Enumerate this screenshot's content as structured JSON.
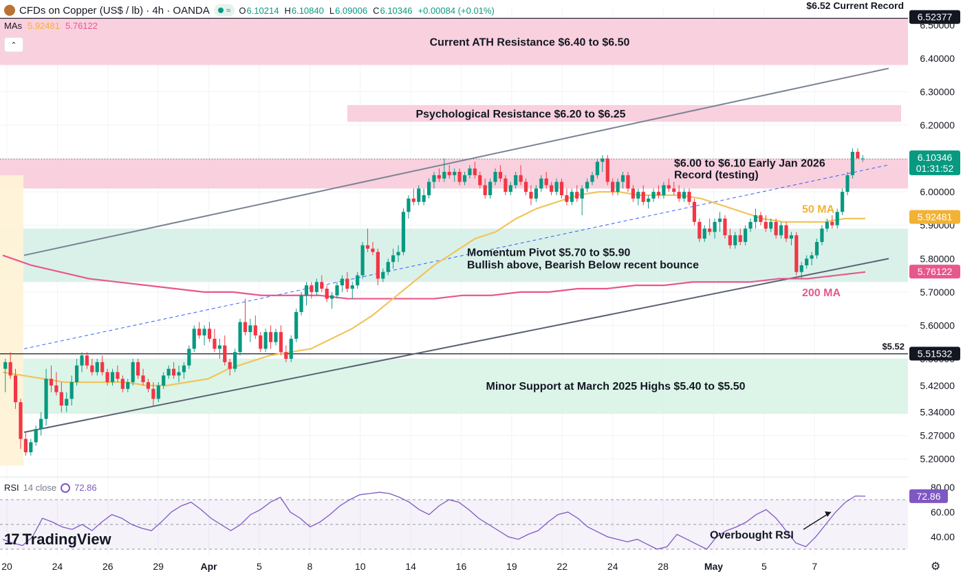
{
  "header": {
    "symbol_title": "CFDs on Copper (US$ / lb) · 4h · OANDA",
    "status_icon": "market-open-icon",
    "ohlc": {
      "open_label": "O",
      "open": "6.10214",
      "high_label": "H",
      "high": "6.10840",
      "low_label": "L",
      "low": "6.09006",
      "close_label": "C",
      "close": "6.10346",
      "change": "+0.00084 (+0.01%)"
    },
    "mas_label": "MAs",
    "ma50_value": "5.92481",
    "ma200_value": "5.76122",
    "collapse_icon": "chevron-up-icon"
  },
  "rsi_header": {
    "label": "RSI",
    "params": "14 close",
    "value": "72.86",
    "icon": "refresh-icon"
  },
  "branding": {
    "name": "TradingView",
    "logo": "tradingview-logo"
  },
  "settings_icon": "gear-icon",
  "colors": {
    "up": "#089981",
    "down": "#f23645",
    "ma50": "#f2c45a",
    "ma200": "#e8578c",
    "resistance_zone": "#f8c8d8",
    "support_zone": "#cdeedd",
    "channel": "#7a8394",
    "trend_dashed": "#2962ff",
    "rsi_line": "#7e57c2"
  },
  "chart_data": {
    "type": "candlestick",
    "y_range": [
      5.15,
      6.55
    ],
    "y_ticks": [
      "6.50000",
      "6.40000",
      "6.30000",
      "6.20000",
      "6.00000",
      "5.90000",
      "5.80000",
      "5.70000",
      "5.60000",
      "5.50000",
      "5.42000",
      "5.34000",
      "5.27000",
      "5.20000"
    ],
    "x_ticks": [
      "20",
      "24",
      "26",
      "29",
      "Apr",
      "5",
      "8",
      "10",
      "14",
      "16",
      "19",
      "22",
      "24",
      "28",
      "May",
      "5",
      "7"
    ],
    "price_badges": [
      {
        "value": "6.52377",
        "color": "#131722"
      },
      {
        "value": "6.10346",
        "sub": "01:31:52",
        "color": "#089981"
      },
      {
        "value": "5.92481",
        "color": "#f2b233"
      },
      {
        "value": "5.76122",
        "color": "#e8578c"
      },
      {
        "value": "5.51532",
        "color": "#131722"
      }
    ],
    "zones": [
      {
        "label": "Current ATH Resistance $6.40 to $6.50",
        "from": 6.38,
        "to": 6.52,
        "kind": "resistance"
      },
      {
        "label": "Psychological Resistance $6.20 to $6.25",
        "from": 6.21,
        "to": 6.26,
        "kind": "resistance"
      },
      {
        "label": "$6.00 to $6.10 Early Jan 2026 Record (testing)",
        "from": 6.01,
        "to": 6.1,
        "kind": "resistance"
      },
      {
        "label": "Momentum Pivot $5.70 to $5.90",
        "sublabel": "Bullish above, Bearish Below recent bounce",
        "from": 5.73,
        "to": 5.89,
        "kind": "pivot"
      },
      {
        "label": "Minor Support at March 2025 Highs $5.40 to $5.50",
        "from": 5.335,
        "to": 5.5,
        "kind": "support"
      }
    ],
    "levels": [
      {
        "label": "$6.52 Current Record",
        "value": 6.52
      },
      {
        "label": "$5.52",
        "value": 5.515
      }
    ],
    "ma_labels": {
      "ma50": "50 MA",
      "ma200": "200 MA"
    },
    "candles": [
      [
        5.47,
        5.5,
        5.4,
        5.49
      ],
      [
        5.49,
        5.52,
        5.44,
        5.45
      ],
      [
        5.45,
        5.47,
        5.35,
        5.37
      ],
      [
        5.37,
        5.38,
        5.23,
        5.26
      ],
      [
        5.26,
        5.28,
        5.21,
        5.22
      ],
      [
        5.22,
        5.26,
        5.21,
        5.25
      ],
      [
        5.25,
        5.3,
        5.24,
        5.29
      ],
      [
        5.29,
        5.34,
        5.27,
        5.32
      ],
      [
        5.32,
        5.47,
        5.3,
        5.44
      ],
      [
        5.44,
        5.48,
        5.4,
        5.42
      ],
      [
        5.42,
        5.46,
        5.39,
        5.4
      ],
      [
        5.4,
        5.43,
        5.34,
        5.36
      ],
      [
        5.36,
        5.4,
        5.34,
        5.38
      ],
      [
        5.38,
        5.45,
        5.36,
        5.43
      ],
      [
        5.43,
        5.5,
        5.42,
        5.48
      ],
      [
        5.48,
        5.52,
        5.46,
        5.51
      ],
      [
        5.51,
        5.52,
        5.47,
        5.48
      ],
      [
        5.48,
        5.5,
        5.45,
        5.46
      ],
      [
        5.46,
        5.5,
        5.45,
        5.49
      ],
      [
        5.49,
        5.51,
        5.45,
        5.46
      ],
      [
        5.46,
        5.47,
        5.42,
        5.43
      ],
      [
        5.43,
        5.47,
        5.42,
        5.46
      ],
      [
        5.46,
        5.48,
        5.43,
        5.44
      ],
      [
        5.44,
        5.45,
        5.4,
        5.41
      ],
      [
        5.41,
        5.44,
        5.4,
        5.43
      ],
      [
        5.43,
        5.5,
        5.42,
        5.49
      ],
      [
        5.49,
        5.5,
        5.44,
        5.45
      ],
      [
        5.45,
        5.47,
        5.42,
        5.43
      ],
      [
        5.43,
        5.44,
        5.4,
        5.41
      ],
      [
        5.41,
        5.43,
        5.36,
        5.38
      ],
      [
        5.38,
        5.43,
        5.37,
        5.42
      ],
      [
        5.42,
        5.46,
        5.41,
        5.45
      ],
      [
        5.45,
        5.48,
        5.44,
        5.47
      ],
      [
        5.47,
        5.49,
        5.44,
        5.45
      ],
      [
        5.45,
        5.48,
        5.43,
        5.46
      ],
      [
        5.46,
        5.49,
        5.44,
        5.48
      ],
      [
        5.48,
        5.54,
        5.47,
        5.53
      ],
      [
        5.53,
        5.6,
        5.52,
        5.59
      ],
      [
        5.59,
        5.61,
        5.56,
        5.57
      ],
      [
        5.57,
        5.6,
        5.54,
        5.59
      ],
      [
        5.59,
        5.61,
        5.55,
        5.56
      ],
      [
        5.56,
        5.59,
        5.52,
        5.53
      ],
      [
        5.53,
        5.56,
        5.5,
        5.54
      ],
      [
        5.54,
        5.57,
        5.48,
        5.49
      ],
      [
        5.49,
        5.5,
        5.45,
        5.47
      ],
      [
        5.47,
        5.53,
        5.46,
        5.52
      ],
      [
        5.52,
        5.62,
        5.51,
        5.61
      ],
      [
        5.61,
        5.68,
        5.57,
        5.58
      ],
      [
        5.58,
        5.62,
        5.55,
        5.6
      ],
      [
        5.6,
        5.63,
        5.56,
        5.57
      ],
      [
        5.57,
        5.58,
        5.52,
        5.53
      ],
      [
        5.53,
        5.59,
        5.52,
        5.58
      ],
      [
        5.58,
        5.6,
        5.53,
        5.55
      ],
      [
        5.55,
        5.59,
        5.54,
        5.58
      ],
      [
        5.58,
        5.6,
        5.51,
        5.52
      ],
      [
        5.52,
        5.54,
        5.49,
        5.5
      ],
      [
        5.5,
        5.57,
        5.49,
        5.56
      ],
      [
        5.56,
        5.65,
        5.55,
        5.64
      ],
      [
        5.64,
        5.7,
        5.63,
        5.69
      ],
      [
        5.69,
        5.73,
        5.66,
        5.72
      ],
      [
        5.72,
        5.73,
        5.68,
        5.7
      ],
      [
        5.7,
        5.74,
        5.69,
        5.73
      ],
      [
        5.73,
        5.75,
        5.7,
        5.71
      ],
      [
        5.71,
        5.72,
        5.67,
        5.68
      ],
      [
        5.68,
        5.7,
        5.65,
        5.69
      ],
      [
        5.69,
        5.73,
        5.68,
        5.72
      ],
      [
        5.72,
        5.75,
        5.7,
        5.74
      ],
      [
        5.74,
        5.76,
        5.7,
        5.71
      ],
      [
        5.71,
        5.73,
        5.68,
        5.72
      ],
      [
        5.72,
        5.76,
        5.71,
        5.75
      ],
      [
        5.75,
        5.85,
        5.74,
        5.84
      ],
      [
        5.84,
        5.89,
        5.82,
        5.83
      ],
      [
        5.83,
        5.85,
        5.81,
        5.82
      ],
      [
        5.82,
        5.83,
        5.72,
        5.74
      ],
      [
        5.74,
        5.77,
        5.73,
        5.76
      ],
      [
        5.76,
        5.8,
        5.75,
        5.79
      ],
      [
        5.79,
        5.83,
        5.77,
        5.81
      ],
      [
        5.81,
        5.84,
        5.79,
        5.82
      ],
      [
        5.82,
        5.95,
        5.81,
        5.94
      ],
      [
        5.94,
        5.99,
        5.92,
        5.98
      ],
      [
        5.98,
        6.01,
        5.96,
        5.97
      ],
      [
        5.97,
        6.02,
        5.96,
        6.01
      ],
      [
        5.97,
        6.01,
        5.96,
        5.99
      ],
      [
        5.99,
        6.04,
        5.98,
        6.03
      ],
      [
        6.03,
        6.06,
        6.01,
        6.05
      ],
      [
        6.05,
        6.07,
        6.03,
        6.04
      ],
      [
        6.04,
        6.1,
        6.03,
        6.06
      ],
      [
        6.06,
        6.08,
        6.04,
        6.05
      ],
      [
        6.05,
        6.07,
        6.03,
        6.06
      ],
      [
        6.06,
        6.07,
        6.02,
        6.03
      ],
      [
        6.03,
        6.06,
        6.02,
        6.05
      ],
      [
        6.05,
        6.08,
        6.04,
        6.07
      ],
      [
        6.07,
        6.09,
        6.04,
        6.05
      ],
      [
        6.05,
        6.06,
        6.01,
        6.02
      ],
      [
        6.02,
        6.04,
        5.98,
        5.99
      ],
      [
        5.99,
        6.04,
        5.98,
        6.03
      ],
      [
        6.03,
        6.07,
        6.02,
        6.06
      ],
      [
        6.06,
        6.08,
        6.03,
        6.04
      ],
      [
        6.04,
        6.05,
        5.99,
        6.0
      ],
      [
        6.0,
        6.03,
        5.99,
        6.02
      ],
      [
        6.02,
        6.06,
        6.01,
        6.05
      ],
      [
        6.05,
        6.08,
        6.02,
        6.03
      ],
      [
        6.03,
        6.04,
        5.99,
        6.0
      ],
      [
        6.0,
        6.02,
        5.96,
        5.98
      ],
      [
        5.98,
        6.02,
        5.97,
        6.01
      ],
      [
        6.01,
        6.05,
        6.0,
        6.04
      ],
      [
        6.04,
        6.06,
        6.01,
        6.02
      ],
      [
        6.02,
        6.03,
        5.99,
        6.0
      ],
      [
        6.0,
        6.04,
        5.99,
        6.03
      ],
      [
        6.03,
        6.04,
        5.98,
        5.99
      ],
      [
        5.99,
        6.01,
        5.96,
        5.97
      ],
      [
        5.97,
        6.01,
        5.96,
        6.0
      ],
      [
        6.0,
        6.02,
        5.97,
        5.98
      ],
      [
        5.98,
        6.02,
        5.93,
        6.01
      ],
      [
        6.01,
        6.04,
        6.0,
        6.03
      ],
      [
        6.03,
        6.06,
        6.02,
        6.05
      ],
      [
        6.05,
        6.1,
        6.04,
        6.09
      ],
      [
        6.09,
        6.11,
        6.06,
        6.1
      ],
      [
        6.1,
        6.11,
        6.02,
        6.03
      ],
      [
        6.03,
        6.04,
        5.99,
        6.0
      ],
      [
        6.0,
        6.04,
        5.99,
        6.03
      ],
      [
        6.03,
        6.06,
        6.01,
        6.05
      ],
      [
        6.05,
        6.06,
        6.0,
        6.01
      ],
      [
        6.01,
        6.02,
        5.97,
        5.98
      ],
      [
        5.98,
        6.01,
        5.96,
        6.0
      ],
      [
        6.0,
        6.02,
        5.96,
        5.97
      ],
      [
        5.97,
        5.99,
        5.95,
        5.98
      ],
      [
        5.98,
        6.01,
        5.97,
        6.0
      ],
      [
        6.0,
        6.02,
        5.98,
        5.99
      ],
      [
        5.99,
        6.03,
        5.98,
        6.02
      ],
      [
        6.02,
        6.04,
        6.0,
        6.01
      ],
      [
        6.01,
        6.03,
        5.99,
        6.0
      ],
      [
        6.0,
        6.02,
        5.97,
        5.98
      ],
      [
        5.98,
        6.01,
        5.97,
        6.0
      ],
      [
        6.0,
        6.01,
        5.96,
        5.97
      ],
      [
        5.97,
        5.98,
        5.9,
        5.91
      ],
      [
        5.91,
        5.92,
        5.85,
        5.86
      ],
      [
        5.86,
        5.9,
        5.85,
        5.89
      ],
      [
        5.89,
        5.92,
        5.87,
        5.88
      ],
      [
        5.88,
        5.92,
        5.86,
        5.91
      ],
      [
        5.91,
        5.94,
        5.88,
        5.92
      ],
      [
        5.92,
        5.93,
        5.86,
        5.87
      ],
      [
        5.87,
        5.89,
        5.83,
        5.84
      ],
      [
        5.84,
        5.88,
        5.83,
        5.87
      ],
      [
        5.87,
        5.89,
        5.84,
        5.85
      ],
      [
        5.85,
        5.9,
        5.84,
        5.89
      ],
      [
        5.89,
        5.92,
        5.88,
        5.91
      ],
      [
        5.91,
        5.95,
        5.89,
        5.93
      ],
      [
        5.93,
        5.94,
        5.9,
        5.91
      ],
      [
        5.91,
        5.93,
        5.88,
        5.89
      ],
      [
        5.89,
        5.92,
        5.88,
        5.91
      ],
      [
        5.91,
        5.92,
        5.86,
        5.87
      ],
      [
        5.87,
        5.91,
        5.86,
        5.9
      ],
      [
        5.9,
        5.91,
        5.85,
        5.86
      ],
      [
        5.86,
        5.88,
        5.84,
        5.87
      ],
      [
        5.87,
        5.88,
        5.75,
        5.76
      ],
      [
        5.76,
        5.79,
        5.74,
        5.78
      ],
      [
        5.78,
        5.81,
        5.77,
        5.8
      ],
      [
        5.8,
        5.82,
        5.78,
        5.81
      ],
      [
        5.81,
        5.86,
        5.8,
        5.85
      ],
      [
        5.85,
        5.9,
        5.84,
        5.89
      ],
      [
        5.89,
        5.92,
        5.88,
        5.91
      ],
      [
        5.91,
        5.93,
        5.89,
        5.9
      ],
      [
        5.9,
        5.95,
        5.89,
        5.94
      ],
      [
        5.94,
        6.01,
        5.93,
        6.0
      ],
      [
        6.0,
        6.06,
        5.99,
        6.05
      ],
      [
        6.05,
        6.13,
        6.04,
        6.12
      ],
      [
        6.12,
        6.13,
        6.1,
        6.1
      ],
      [
        6.1,
        6.11,
        6.09,
        6.1
      ]
    ],
    "ma50": [
      5.46,
      5.45,
      5.44,
      5.43,
      5.43,
      5.43,
      5.43,
      5.42,
      5.42,
      5.43,
      5.44,
      5.47,
      5.49,
      5.51,
      5.52,
      5.53,
      5.56,
      5.59,
      5.63,
      5.68,
      5.73,
      5.78,
      5.82,
      5.86,
      5.88,
      5.92,
      5.95,
      5.97,
      5.99,
      6.0,
      6.0,
      5.99,
      5.99,
      5.99,
      5.98,
      5.96,
      5.94,
      5.92,
      5.91,
      5.91,
      5.91,
      5.92,
      5.92
    ],
    "ma200": [
      5.81,
      5.78,
      5.76,
      5.74,
      5.73,
      5.72,
      5.71,
      5.7,
      5.7,
      5.69,
      5.69,
      5.69,
      5.68,
      5.68,
      5.68,
      5.68,
      5.69,
      5.69,
      5.7,
      5.7,
      5.71,
      5.71,
      5.72,
      5.72,
      5.73,
      5.73,
      5.73,
      5.74,
      5.74,
      5.75,
      5.76
    ],
    "rsi": {
      "y_range": [
        25,
        85
      ],
      "ticks": [
        "80.00",
        "60.00",
        "40.00"
      ],
      "overbought": 70,
      "mid": 50,
      "oversold": 30,
      "annotation": "Overbought RSI",
      "values": [
        38,
        35,
        33,
        40,
        55,
        52,
        48,
        46,
        50,
        45,
        52,
        58,
        55,
        50,
        47,
        45,
        52,
        60,
        65,
        68,
        62,
        55,
        50,
        45,
        50,
        58,
        62,
        68,
        72,
        60,
        55,
        48,
        52,
        58,
        65,
        70,
        74,
        75,
        76,
        75,
        72,
        68,
        62,
        58,
        65,
        70,
        68,
        62,
        55,
        50,
        45,
        40,
        38,
        42,
        45,
        52,
        58,
        60,
        55,
        48,
        44,
        40,
        38,
        36,
        38,
        34,
        30,
        32,
        42,
        38,
        34,
        30,
        40,
        45,
        48,
        52,
        58,
        62,
        55,
        45,
        35,
        32,
        40,
        50,
        60,
        68,
        73,
        72.86
      ]
    }
  }
}
